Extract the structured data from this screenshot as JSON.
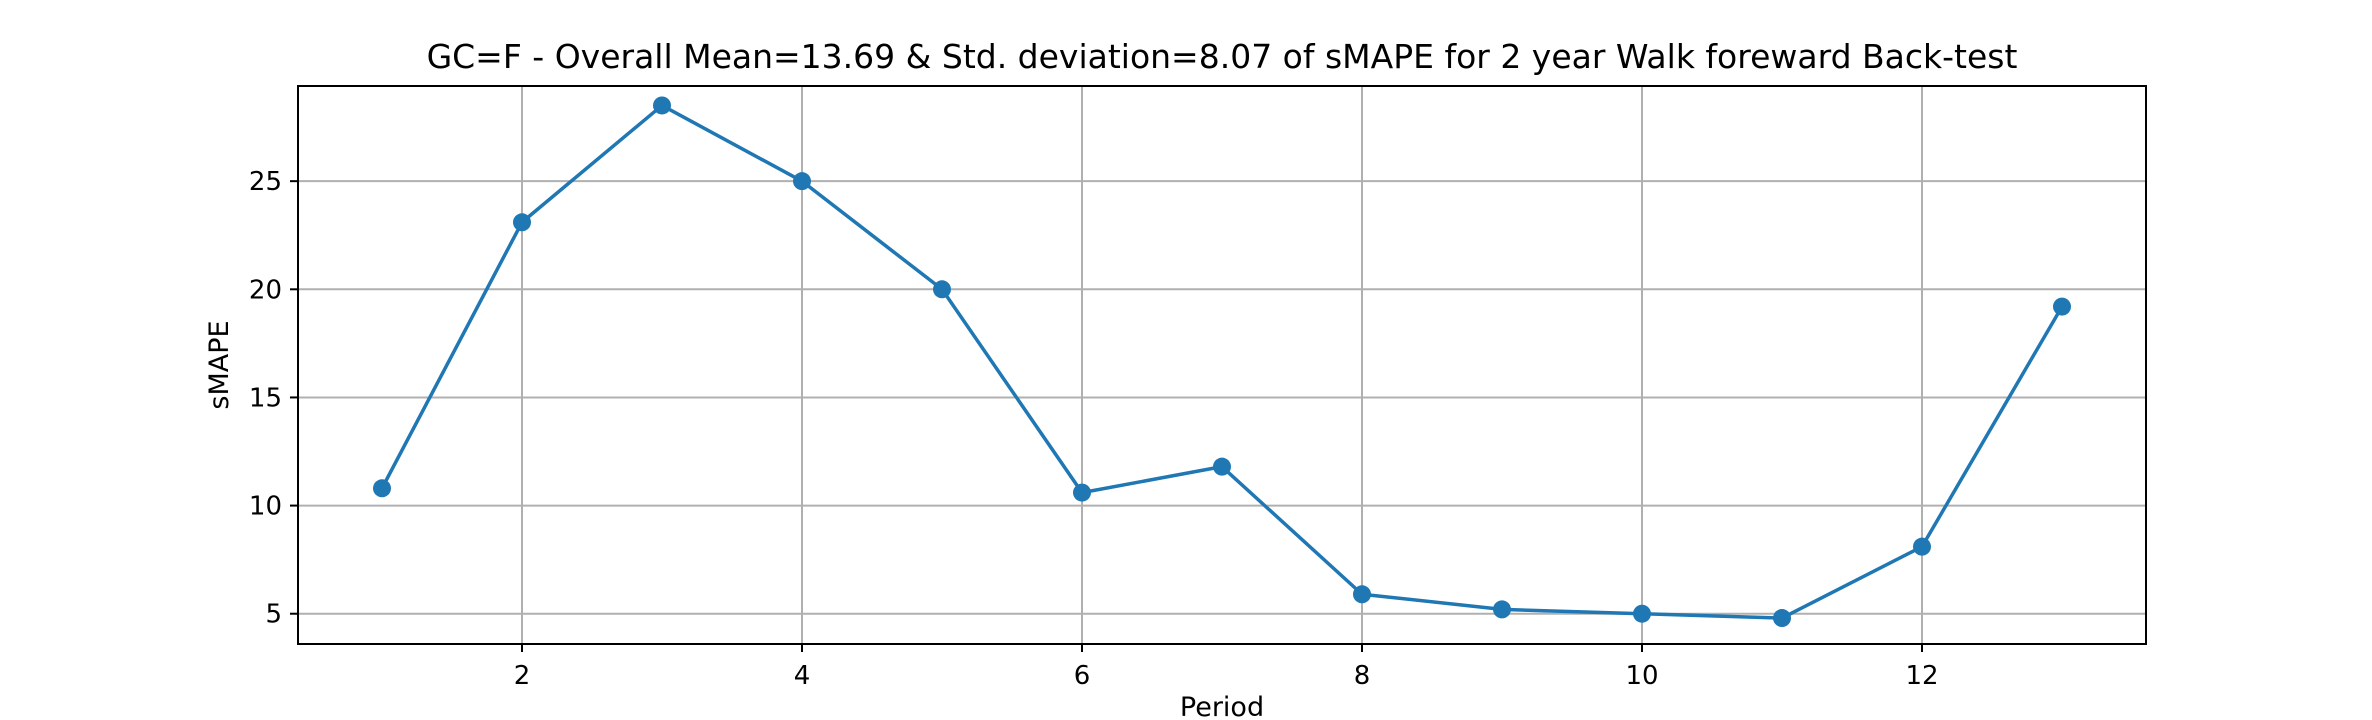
{
  "chart_data": {
    "type": "line",
    "title": "GC=F - Overall Mean=13.69 & Std. deviation=8.07 of sMAPE for 2 year Walk foreward Back-test",
    "xlabel": "Period",
    "ylabel": "sMAPE",
    "x": [
      1,
      2,
      3,
      4,
      5,
      6,
      7,
      8,
      9,
      10,
      11,
      12,
      13
    ],
    "series": [
      {
        "values": [
          10.8,
          23.1,
          28.5,
          25.0,
          20.0,
          10.6,
          11.8,
          5.9,
          5.2,
          5.0,
          4.8,
          8.1,
          19.2
        ]
      }
    ],
    "xlim": [
      0.4,
      13.6
    ],
    "ylim": [
      3.6,
      29.4
    ],
    "xticks": [
      2,
      4,
      6,
      8,
      10,
      12
    ],
    "yticks": [
      5,
      10,
      15,
      20,
      25
    ],
    "grid": true,
    "marker": "circle",
    "color": "#1f77b4"
  }
}
